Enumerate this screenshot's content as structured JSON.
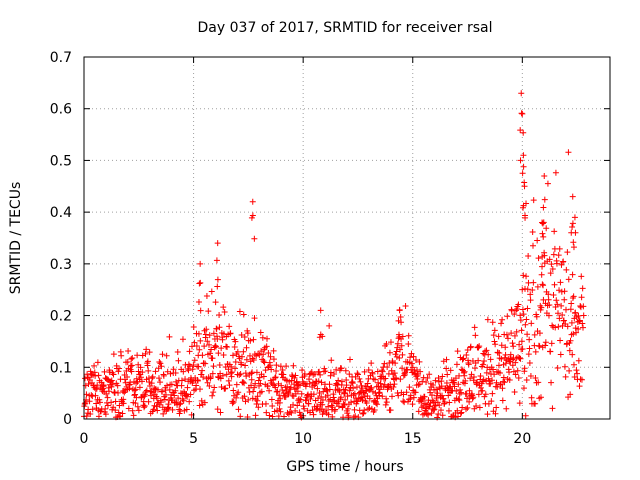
{
  "chart_data": {
    "type": "scatter",
    "title": "Day 037 of 2017, SRMTID for receiver rsal",
    "xlabel": "GPS time / hours",
    "ylabel": "SRMTID / TECUs",
    "xlim": [
      0,
      24
    ],
    "ylim": [
      0,
      0.7
    ],
    "xticks": [
      0,
      5,
      10,
      15,
      20
    ],
    "xtick_labels": [
      "0",
      "5",
      "10",
      "15",
      "20"
    ],
    "yticks": [
      0,
      0.1,
      0.2,
      0.3,
      0.4,
      0.5,
      0.6,
      0.7
    ],
    "ytick_labels": [
      "0",
      "0.1",
      "0.2",
      "0.3",
      "0.4",
      "0.5",
      "0.6",
      "0.7"
    ],
    "grid": true,
    "marker": "+",
    "marker_color": "#ff0000",
    "profile": {
      "description_hours": [
        0,
        1,
        2,
        3,
        4,
        4.8,
        5.2,
        5.8,
        6.2,
        7,
        7.7,
        8.3,
        9,
        10,
        11,
        12,
        13,
        13.8,
        14.4,
        15,
        15.6,
        16.5,
        17.5,
        18.5,
        19.5,
        20.2,
        21,
        21.8,
        22.8
      ],
      "baseline_tecu": [
        0.055,
        0.05,
        0.065,
        0.06,
        0.06,
        0.07,
        0.1,
        0.12,
        0.14,
        0.09,
        0.11,
        0.08,
        0.06,
        0.045,
        0.05,
        0.05,
        0.05,
        0.06,
        0.12,
        0.07,
        0.03,
        0.045,
        0.07,
        0.09,
        0.12,
        0.18,
        0.22,
        0.2,
        0.17
      ]
    },
    "spikes": [
      {
        "x": 5.3,
        "y": 0.3
      },
      {
        "x": 6.1,
        "y": 0.34
      },
      {
        "x": 7.7,
        "y": 0.42
      },
      {
        "x": 10.8,
        "y": 0.21
      },
      {
        "x": 14.4,
        "y": 0.21
      },
      {
        "x": 19.95,
        "y": 0.63
      },
      {
        "x": 20.0,
        "y": 0.59
      },
      {
        "x": 20.05,
        "y": 0.51
      },
      {
        "x": 20.1,
        "y": 0.45
      },
      {
        "x": 21.0,
        "y": 0.47
      },
      {
        "x": 20.9,
        "y": 0.38
      },
      {
        "x": 22.3,
        "y": 0.43
      },
      {
        "x": 22.4,
        "y": 0.39
      }
    ],
    "n_points": 1440,
    "seed": 37
  }
}
